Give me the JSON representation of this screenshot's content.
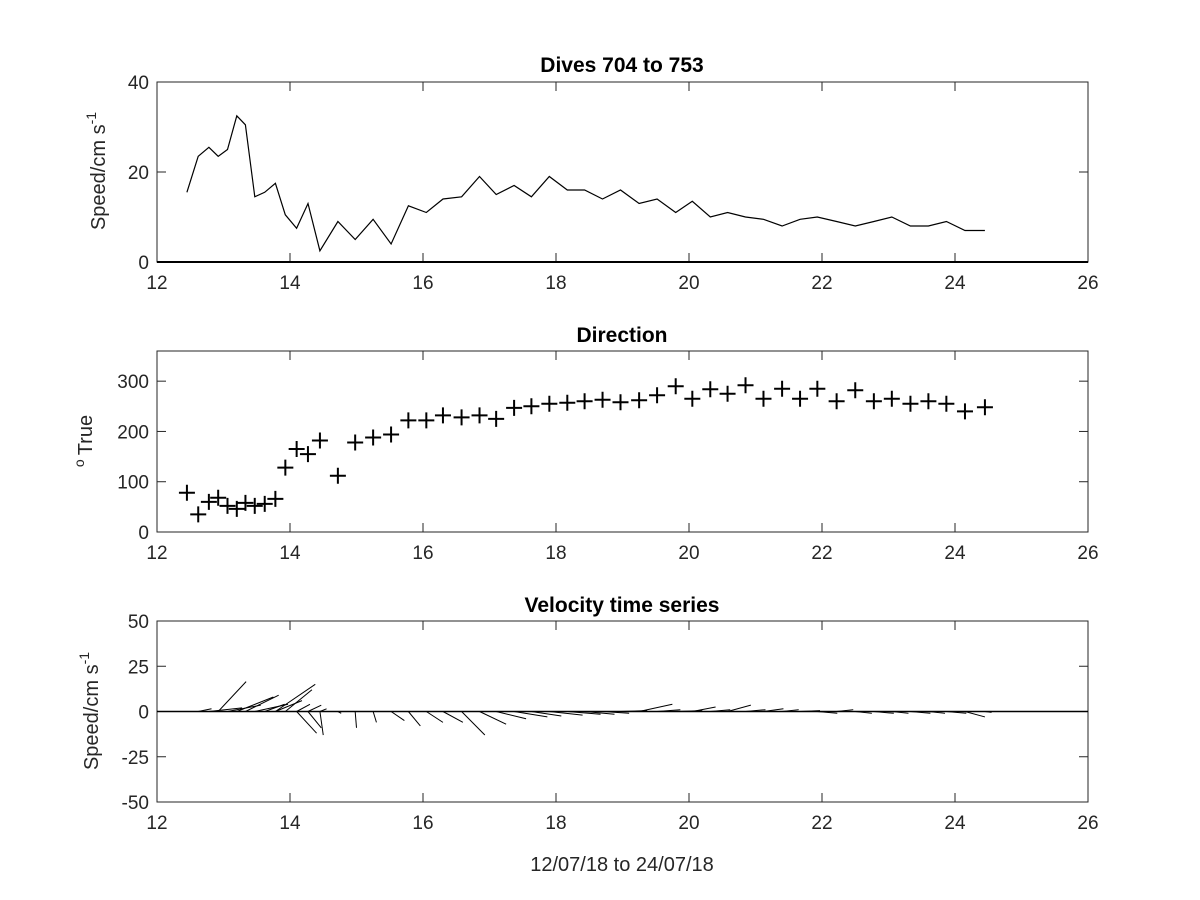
{
  "chart_data": [
    {
      "type": "line",
      "title": "Dives 704 to 753",
      "ylabel": "Speed/cm s",
      "ylabel_sup": "-1",
      "xlim": [
        12,
        26
      ],
      "ylim": [
        0,
        40
      ],
      "xticks": [
        12,
        14,
        16,
        18,
        20,
        22,
        24,
        26
      ],
      "yticks": [
        0,
        20,
        40
      ],
      "series": [
        {
          "x": [
            12.45,
            12.62,
            12.78,
            12.92,
            13.06,
            13.2,
            13.33,
            13.47,
            13.62,
            13.78,
            13.93,
            14.1,
            14.27,
            14.45,
            14.72,
            14.98,
            15.25,
            15.52,
            15.78,
            16.05,
            16.3,
            16.58,
            16.85,
            17.1,
            17.37,
            17.63,
            17.9,
            18.17,
            18.43,
            18.7,
            18.97,
            19.25,
            19.52,
            19.8,
            20.05,
            20.32,
            20.58,
            20.85,
            21.12,
            21.4,
            21.67,
            21.93,
            22.22,
            22.5,
            22.78,
            23.05,
            23.33,
            23.6,
            23.87,
            24.15,
            24.45
          ],
          "y": [
            15.5,
            23.5,
            25.5,
            23.5,
            25,
            32.5,
            30.5,
            14.5,
            15.5,
            17.5,
            10.5,
            7.5,
            13,
            2.5,
            9,
            5,
            9.5,
            4,
            12.5,
            11,
            14,
            14.5,
            19,
            15,
            17,
            14.5,
            19,
            16,
            16,
            14,
            16,
            13,
            14,
            11,
            13.5,
            10,
            11,
            10,
            9.5,
            8,
            9.5,
            10,
            9,
            8,
            9,
            10,
            8,
            8,
            9,
            7,
            7
          ]
        }
      ]
    },
    {
      "type": "scatter",
      "title": "Direction",
      "ylabel": "True",
      "ylabel_sup": "o",
      "xlim": [
        12,
        26
      ],
      "ylim": [
        0,
        360
      ],
      "xticks": [
        12,
        14,
        16,
        18,
        20,
        22,
        24,
        26
      ],
      "yticks": [
        0,
        100,
        200,
        300
      ],
      "series": [
        {
          "x": [
            12.45,
            12.62,
            12.78,
            12.92,
            13.06,
            13.2,
            13.33,
            13.47,
            13.62,
            13.78,
            13.93,
            14.1,
            14.27,
            14.45,
            14.72,
            14.98,
            15.25,
            15.52,
            15.78,
            16.05,
            16.3,
            16.58,
            16.85,
            17.1,
            17.37,
            17.63,
            17.9,
            18.17,
            18.43,
            18.7,
            18.97,
            19.25,
            19.52,
            19.8,
            20.05,
            20.32,
            20.58,
            20.85,
            21.12,
            21.4,
            21.67,
            21.93,
            22.22,
            22.5,
            22.78,
            23.05,
            23.33,
            23.6,
            23.87,
            24.15,
            24.45
          ],
          "y": [
            78,
            35,
            60,
            68,
            52,
            46,
            58,
            52,
            56,
            66,
            128,
            165,
            155,
            182,
            112,
            178,
            188,
            194,
            222,
            222,
            232,
            228,
            232,
            225,
            247,
            250,
            255,
            257,
            260,
            263,
            258,
            262,
            272,
            290,
            265,
            284,
            275,
            292,
            265,
            285,
            265,
            285,
            260,
            282,
            260,
            265,
            255,
            260,
            255,
            240,
            248
          ]
        }
      ]
    },
    {
      "type": "line",
      "subtype": "vector-stick",
      "title": "Velocity time series",
      "ylabel": "Speed/cm s",
      "ylabel_sup": "-1",
      "xlabel": "12/07/18 to 24/07/18",
      "xlim": [
        12,
        26
      ],
      "ylim": [
        -50,
        50
      ],
      "xticks": [
        12,
        14,
        16,
        18,
        20,
        22,
        24,
        26
      ],
      "yticks": [
        -50,
        -25,
        0,
        25,
        50
      ],
      "sticks": [
        {
          "x": 12.62,
          "dx": 0.2,
          "dy": 1.5
        },
        {
          "x": 12.78,
          "dx": 0.5,
          "dy": 2
        },
        {
          "x": 12.92,
          "dx": 0.42,
          "dy": 16.5
        },
        {
          "x": 13.06,
          "dx": 0.5,
          "dy": 3.5
        },
        {
          "x": 13.2,
          "dx": 0.55,
          "dy": 8
        },
        {
          "x": 13.33,
          "dx": 0.5,
          "dy": 9
        },
        {
          "x": 13.47,
          "dx": 0.5,
          "dy": 4
        },
        {
          "x": 13.62,
          "dx": 0.3,
          "dy": 4
        },
        {
          "x": 13.78,
          "dx": 0.4,
          "dy": 6
        },
        {
          "x": 13.93,
          "dx": 0.4,
          "dy": 12
        },
        {
          "x": 14.1,
          "dx": 0.2,
          "dy": 4
        },
        {
          "x": 14.27,
          "dx": 0.2,
          "dy": 3.5
        },
        {
          "x": 14.45,
          "dx": 0.1,
          "dy": 1.5
        },
        {
          "x": 13.78,
          "dx": 0.6,
          "dy": 15
        },
        {
          "x": 14.1,
          "dx": 0.3,
          "dy": -12
        },
        {
          "x": 14.27,
          "dx": 0.2,
          "dy": -9
        },
        {
          "x": 14.45,
          "dx": 0.05,
          "dy": -13
        },
        {
          "x": 14.72,
          "dx": 0.05,
          "dy": -1
        },
        {
          "x": 14.98,
          "dx": 0.02,
          "dy": -9
        },
        {
          "x": 15.25,
          "dx": 0.05,
          "dy": -6
        },
        {
          "x": 15.52,
          "dx": 0.2,
          "dy": -5
        },
        {
          "x": 15.78,
          "dx": 0.18,
          "dy": -8
        },
        {
          "x": 16.05,
          "dx": 0.25,
          "dy": -6
        },
        {
          "x": 16.3,
          "dx": 0.3,
          "dy": -6
        },
        {
          "x": 16.58,
          "dx": 0.35,
          "dy": -13
        },
        {
          "x": 16.85,
          "dx": 0.4,
          "dy": -7
        },
        {
          "x": 17.1,
          "dx": 0.45,
          "dy": -4
        },
        {
          "x": 17.37,
          "dx": 0.5,
          "dy": -3
        },
        {
          "x": 17.63,
          "dx": 0.45,
          "dy": -2.5
        },
        {
          "x": 17.9,
          "dx": 0.5,
          "dy": -2
        },
        {
          "x": 18.17,
          "dx": 0.5,
          "dy": -1.5
        },
        {
          "x": 18.43,
          "dx": 0.45,
          "dy": -1.5
        },
        {
          "x": 18.7,
          "dx": 0.4,
          "dy": -1
        },
        {
          "x": 18.97,
          "dx": 0.4,
          "dy": 0.5
        },
        {
          "x": 19.25,
          "dx": 0.5,
          "dy": 4
        },
        {
          "x": 19.52,
          "dx": 0.35,
          "dy": 1
        },
        {
          "x": 19.8,
          "dx": 0.4,
          "dy": 0.5
        },
        {
          "x": 20.05,
          "dx": 0.35,
          "dy": 2.5
        },
        {
          "x": 20.32,
          "dx": 0.3,
          "dy": 1
        },
        {
          "x": 20.58,
          "dx": 0.35,
          "dy": 3.5
        },
        {
          "x": 20.85,
          "dx": 0.3,
          "dy": 1
        },
        {
          "x": 21.12,
          "dx": 0.3,
          "dy": 1.5
        },
        {
          "x": 21.4,
          "dx": 0.25,
          "dy": 1
        },
        {
          "x": 21.67,
          "dx": 0.3,
          "dy": 0.5
        },
        {
          "x": 21.93,
          "dx": 0.3,
          "dy": -1
        },
        {
          "x": 22.22,
          "dx": 0.25,
          "dy": 1
        },
        {
          "x": 22.5,
          "dx": 0.25,
          "dy": -1
        },
        {
          "x": 22.78,
          "dx": 0.3,
          "dy": -1
        },
        {
          "x": 23.05,
          "dx": 0.25,
          "dy": -1
        },
        {
          "x": 23.33,
          "dx": 0.3,
          "dy": -1
        },
        {
          "x": 23.6,
          "dx": 0.25,
          "dy": -1
        },
        {
          "x": 23.87,
          "dx": 0.3,
          "dy": -1
        },
        {
          "x": 24.15,
          "dx": 0.3,
          "dy": -3
        },
        {
          "x": 24.45,
          "dx": 0.1,
          "dy": -0.5
        }
      ]
    }
  ]
}
